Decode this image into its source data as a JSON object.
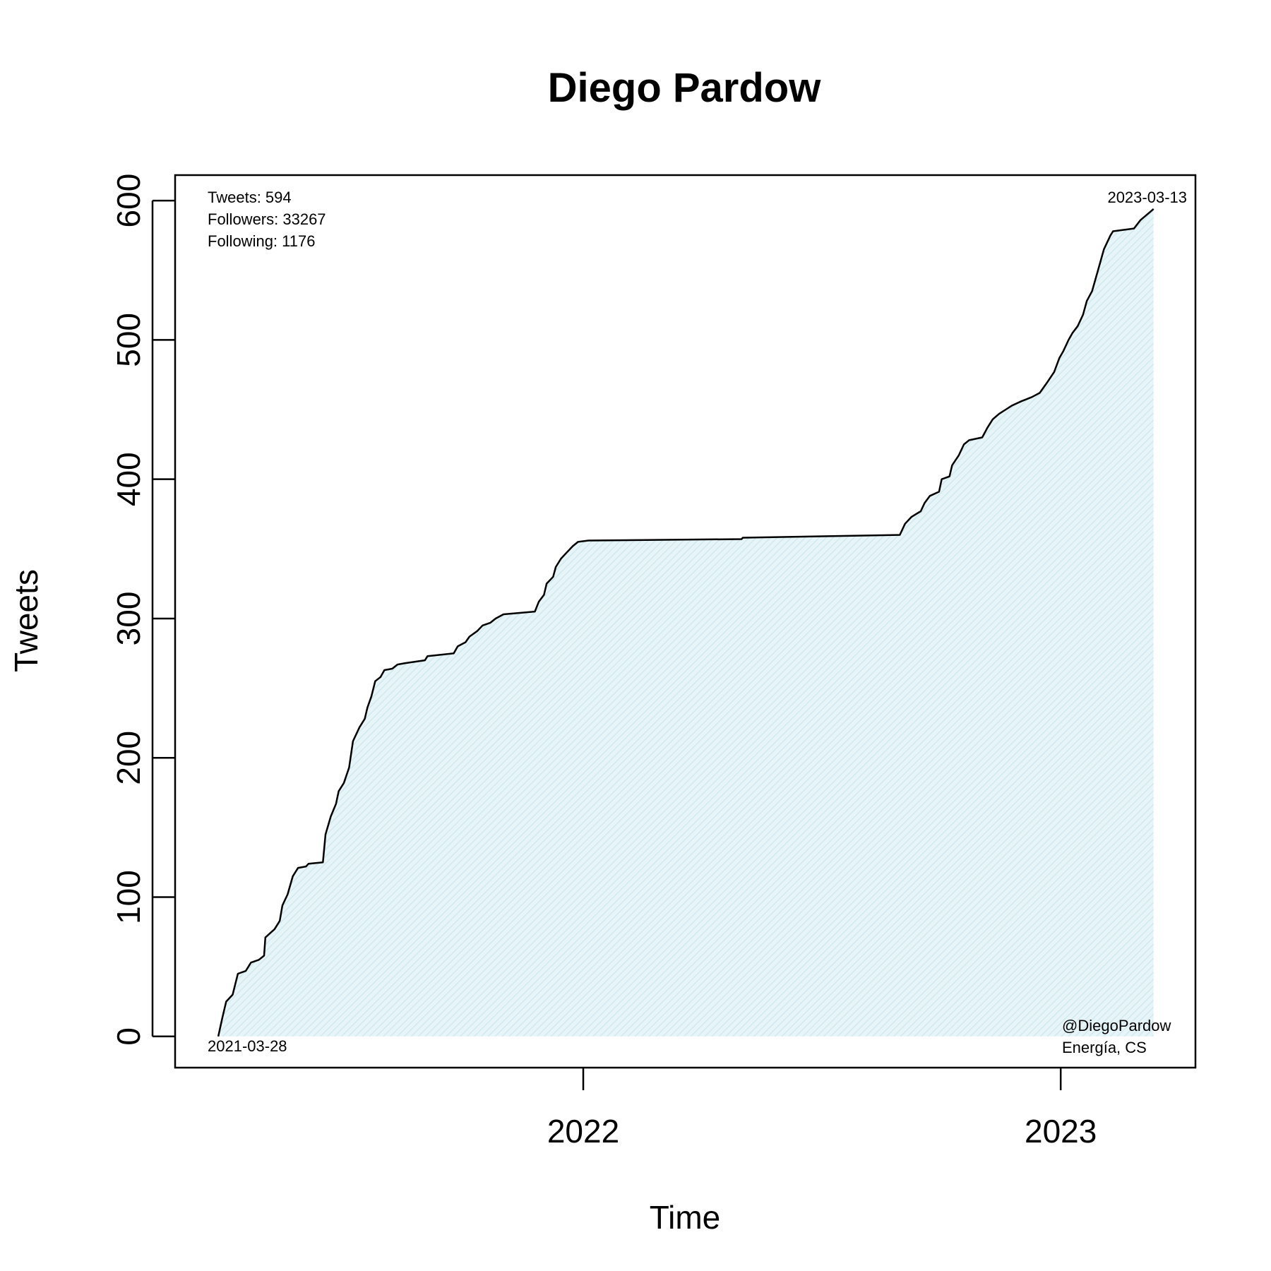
{
  "chart_data": {
    "type": "area",
    "title": "Diego Pardow",
    "xlabel": "Time",
    "ylabel": "Tweets",
    "ylim": [
      0,
      600
    ],
    "y_ticks": [
      0,
      100,
      200,
      300,
      400,
      500,
      600
    ],
    "x_ticks": [
      {
        "date": "2022-01-01",
        "label": "2022"
      },
      {
        "date": "2023-01-01",
        "label": "2023"
      }
    ],
    "xlim": [
      "2021-02-23",
      "2023-04-14"
    ],
    "grid": false,
    "fill_color": "#dff0f5",
    "line_color": "#000000",
    "series": [
      {
        "points": [
          [
            "2021-03-28",
            0
          ],
          [
            "2021-03-31",
            13
          ],
          [
            "2021-04-03",
            25
          ],
          [
            "2021-04-08",
            30
          ],
          [
            "2021-04-12",
            45
          ],
          [
            "2021-04-18",
            47
          ],
          [
            "2021-04-22",
            53
          ],
          [
            "2021-04-28",
            55
          ],
          [
            "2021-05-02",
            58
          ],
          [
            "2021-05-03",
            71
          ],
          [
            "2021-05-10",
            77
          ],
          [
            "2021-05-14",
            83
          ],
          [
            "2021-05-16",
            94
          ],
          [
            "2021-05-20",
            102
          ],
          [
            "2021-05-24",
            115
          ],
          [
            "2021-05-28",
            121
          ],
          [
            "2021-06-03",
            122
          ],
          [
            "2021-06-05",
            124
          ],
          [
            "2021-06-16",
            125
          ],
          [
            "2021-06-18",
            145
          ],
          [
            "2021-06-22",
            158
          ],
          [
            "2021-06-26",
            167
          ],
          [
            "2021-06-28",
            176
          ],
          [
            "2021-07-02",
            182
          ],
          [
            "2021-07-06",
            193
          ],
          [
            "2021-07-09",
            212
          ],
          [
            "2021-07-14",
            222
          ],
          [
            "2021-07-18",
            228
          ],
          [
            "2021-07-20",
            236
          ],
          [
            "2021-07-23",
            244
          ],
          [
            "2021-07-26",
            255
          ],
          [
            "2021-07-30",
            258
          ],
          [
            "2021-08-02",
            263
          ],
          [
            "2021-08-08",
            264
          ],
          [
            "2021-08-12",
            267
          ],
          [
            "2021-08-18",
            268
          ],
          [
            "2021-09-02",
            270
          ],
          [
            "2021-09-04",
            273
          ],
          [
            "2021-09-24",
            275
          ],
          [
            "2021-09-27",
            280
          ],
          [
            "2021-10-03",
            283
          ],
          [
            "2021-10-06",
            287
          ],
          [
            "2021-10-12",
            291
          ],
          [
            "2021-10-16",
            295
          ],
          [
            "2021-10-22",
            297
          ],
          [
            "2021-10-26",
            300
          ],
          [
            "2021-11-01",
            303
          ],
          [
            "2021-11-25",
            305
          ],
          [
            "2021-11-28",
            312
          ],
          [
            "2021-12-02",
            317
          ],
          [
            "2021-12-04",
            325
          ],
          [
            "2021-12-09",
            330
          ],
          [
            "2021-12-11",
            337
          ],
          [
            "2021-12-15",
            343
          ],
          [
            "2021-12-19",
            347
          ],
          [
            "2021-12-24",
            352
          ],
          [
            "2021-12-28",
            355
          ],
          [
            "2022-01-05",
            356
          ],
          [
            "2022-05-02",
            357
          ],
          [
            "2022-05-03",
            358
          ],
          [
            "2022-08-31",
            360
          ],
          [
            "2022-09-04",
            368
          ],
          [
            "2022-09-09",
            373
          ],
          [
            "2022-09-16",
            377
          ],
          [
            "2022-09-19",
            383
          ],
          [
            "2022-09-23",
            388
          ],
          [
            "2022-09-30",
            391
          ],
          [
            "2022-10-02",
            400
          ],
          [
            "2022-10-08",
            402
          ],
          [
            "2022-10-10",
            410
          ],
          [
            "2022-10-15",
            417
          ],
          [
            "2022-10-19",
            425
          ],
          [
            "2022-10-23",
            428
          ],
          [
            "2022-11-02",
            430
          ],
          [
            "2022-11-06",
            437
          ],
          [
            "2022-11-10",
            443
          ],
          [
            "2022-11-15",
            447
          ],
          [
            "2022-11-20",
            450
          ],
          [
            "2022-11-25",
            453
          ],
          [
            "2022-12-02",
            456
          ],
          [
            "2022-12-10",
            459
          ],
          [
            "2022-12-16",
            462
          ],
          [
            "2022-12-22",
            470
          ],
          [
            "2022-12-27",
            477
          ],
          [
            "2022-12-31",
            487
          ],
          [
            "2023-01-03",
            492
          ],
          [
            "2023-01-07",
            500
          ],
          [
            "2023-01-10",
            505
          ],
          [
            "2023-01-14",
            510
          ],
          [
            "2023-01-18",
            518
          ],
          [
            "2023-01-21",
            528
          ],
          [
            "2023-01-25",
            535
          ],
          [
            "2023-01-28",
            545
          ],
          [
            "2023-01-31",
            555
          ],
          [
            "2023-02-03",
            565
          ],
          [
            "2023-02-08",
            575
          ],
          [
            "2023-02-10",
            578
          ],
          [
            "2023-02-26",
            580
          ],
          [
            "2023-03-03",
            586
          ],
          [
            "2023-03-08",
            590
          ],
          [
            "2023-03-13",
            594
          ]
        ]
      }
    ],
    "annotations": {
      "top_left": [
        "Tweets: 594",
        "Followers: 33267",
        "Following: 1176"
      ],
      "top_right": "2023-03-13",
      "bottom_left": "2021-03-28",
      "bottom_right": [
        "@DiegoPardow",
        "Energía, CS"
      ]
    }
  }
}
